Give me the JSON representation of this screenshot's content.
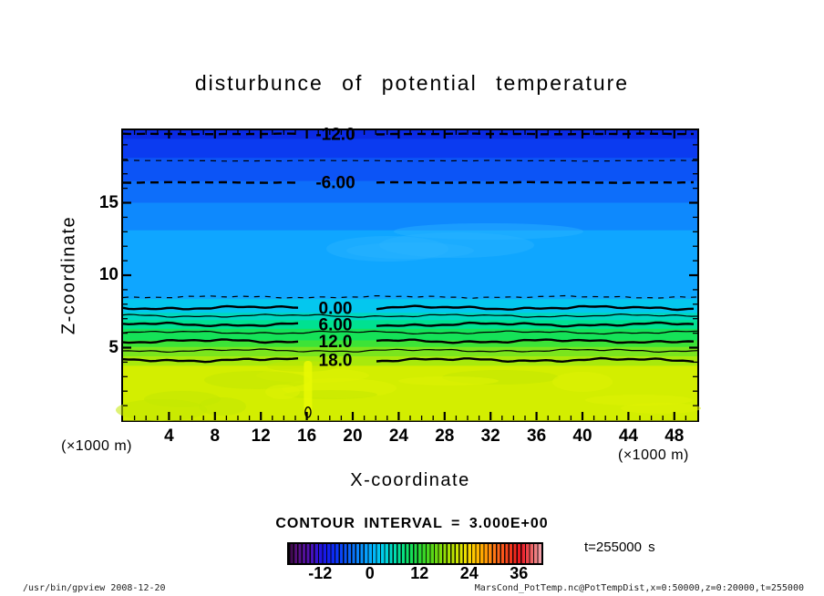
{
  "title": "disturbunce of potential temperature",
  "legend": {
    "contour_interval_label": "CONTOUR INTERVAL = 3.000E+00",
    "time_label": "t=255000 s"
  },
  "footer_left": "/usr/bin/gpview  2008-12-20",
  "footer_right": "MarsCond_PotTemp.nc@PotTempDist,x=0:50000,z=0:20000,t=255000",
  "chart_data": {
    "type": "heatmap",
    "subtype": "filled-contour",
    "title": "disturbunce of potential temperature",
    "xlabel": "X-coordinate",
    "ylabel": "Z-coordinate",
    "x_unit_label": "(×1000 m)",
    "y_unit_label": "(×1000 m)",
    "xlim": [
      0,
      50
    ],
    "ylim": [
      0,
      20
    ],
    "x_major_ticks": [
      4,
      8,
      12,
      16,
      20,
      24,
      28,
      32,
      36,
      40,
      44,
      48
    ],
    "x_minor_step": 1,
    "y_major_ticks": [
      5,
      10,
      15
    ],
    "y_minor_step": 1,
    "contour_interval": 3.0,
    "time_seconds": 255000,
    "contours": [
      {
        "value": -12,
        "label": "-12.0",
        "z": 19.75,
        "style": "dashed",
        "weight": "thick"
      },
      {
        "value": -9,
        "label": "",
        "z": 17.9,
        "style": "dashed",
        "weight": "thin"
      },
      {
        "value": -6,
        "label": "-6.00",
        "z": 16.4,
        "style": "dashed",
        "weight": "thick"
      },
      {
        "value": -3,
        "label": "",
        "z": 8.5,
        "style": "dashed",
        "weight": "thin"
      },
      {
        "value": 0,
        "label": "0.00",
        "z": 7.75,
        "style": "solid",
        "weight": "thick"
      },
      {
        "value": 3,
        "label": "",
        "z": 7.2,
        "style": "solid",
        "weight": "thin"
      },
      {
        "value": 6,
        "label": "6.00",
        "z": 6.6,
        "style": "solid",
        "weight": "thick"
      },
      {
        "value": 9,
        "label": "",
        "z": 6.05,
        "style": "solid",
        "weight": "thin"
      },
      {
        "value": 12,
        "label": "12.0",
        "z": 5.45,
        "style": "solid",
        "weight": "thick"
      },
      {
        "value": 15,
        "label": "",
        "z": 4.8,
        "style": "solid",
        "weight": "thin"
      },
      {
        "value": 18,
        "label": "18.0",
        "z": 4.15,
        "style": "solid",
        "weight": "thick"
      }
    ],
    "closed_contour": {
      "x": 16.1,
      "z": 0.55,
      "rx": 0.25,
      "rz": 0.35
    },
    "fill_bands": [
      {
        "z_from": 20.0,
        "z_to": 19.4,
        "color": "#0a2ae4"
      },
      {
        "z_from": 19.4,
        "z_to": 18.1,
        "color": "#0b3bf0"
      },
      {
        "z_from": 18.1,
        "z_to": 16.5,
        "color": "#0c54f6"
      },
      {
        "z_from": 16.5,
        "z_to": 15.0,
        "color": "#0d6efa"
      },
      {
        "z_from": 15.0,
        "z_to": 13.1,
        "color": "#0e89fd"
      },
      {
        "z_from": 13.1,
        "z_to": 8.35,
        "color": "#0fa6ff"
      },
      {
        "z_from": 8.35,
        "z_to": 7.4,
        "color": "#04c7ee"
      },
      {
        "z_from": 7.4,
        "z_to": 6.9,
        "color": "#00d8c0"
      },
      {
        "z_from": 6.9,
        "z_to": 6.3,
        "color": "#00e191"
      },
      {
        "z_from": 6.3,
        "z_to": 5.5,
        "color": "#15e258"
      },
      {
        "z_from": 5.5,
        "z_to": 5.05,
        "color": "#3de337"
      },
      {
        "z_from": 5.05,
        "z_to": 4.4,
        "color": "#7ae51d"
      },
      {
        "z_from": 4.4,
        "z_to": 3.75,
        "color": "#a9e90c"
      },
      {
        "z_from": 3.75,
        "z_to": 0.0,
        "color": "#d3ee00"
      }
    ],
    "colorbar": {
      "min": -20,
      "max": 41,
      "ticks": [
        -12,
        0,
        12,
        24,
        36
      ],
      "stops": [
        {
          "value": -20,
          "color": "#38083e"
        },
        {
          "value": -18,
          "color": "#581080"
        },
        {
          "value": -15,
          "color": "#5010b0"
        },
        {
          "value": -13.5,
          "color": "#3813cc"
        },
        {
          "value": -12,
          "color": "#1c14e4"
        },
        {
          "value": -9,
          "color": "#0b2cf4"
        },
        {
          "value": -6,
          "color": "#0a5af8"
        },
        {
          "value": -3,
          "color": "#0a8afc"
        },
        {
          "value": 0,
          "color": "#02b2fe"
        },
        {
          "value": 3,
          "color": "#00d2e8"
        },
        {
          "value": 6,
          "color": "#00dfa6"
        },
        {
          "value": 9,
          "color": "#0ee163"
        },
        {
          "value": 12,
          "color": "#2ed42b"
        },
        {
          "value": 15,
          "color": "#5fd713"
        },
        {
          "value": 18,
          "color": "#9ade04"
        },
        {
          "value": 21,
          "color": "#d4e800"
        },
        {
          "value": 24,
          "color": "#fed300"
        },
        {
          "value": 27,
          "color": "#ffa300"
        },
        {
          "value": 30,
          "color": "#ff7118"
        },
        {
          "value": 33,
          "color": "#f8401c"
        },
        {
          "value": 36,
          "color": "#ea1420"
        },
        {
          "value": 39,
          "color": "#ee6f6f"
        },
        {
          "value": 41,
          "color": "#f2a3ac"
        }
      ]
    }
  }
}
